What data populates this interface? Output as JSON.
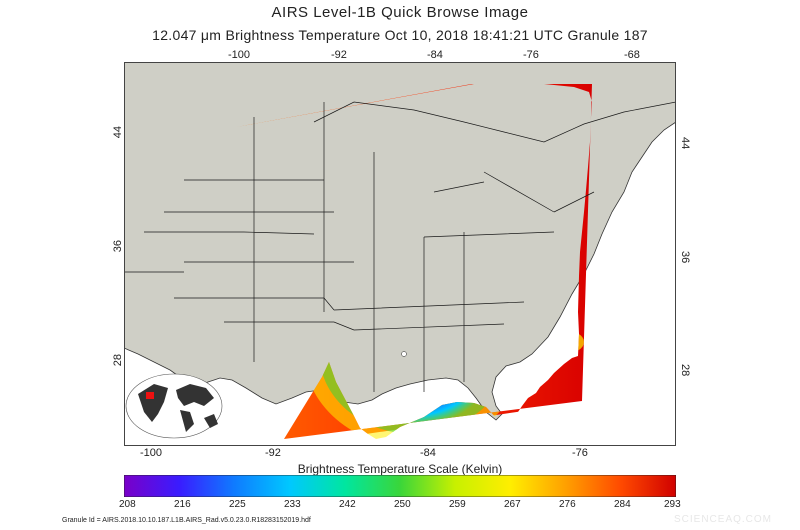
{
  "header": {
    "title": "AIRS Level-1B Quick Browse Image",
    "subtitle": "12.047 μm Brightness Temperature    Oct 10, 2018 18:41:21 UTC   Granule 187"
  },
  "map": {
    "top_longitude_labels": [
      "-100",
      "-92",
      "-84",
      "-76",
      "-68"
    ],
    "bottom_longitude_labels": [
      "-100",
      "-92",
      "-84",
      "-76"
    ],
    "left_latitude_labels": [
      "44",
      "36",
      "28"
    ],
    "right_latitude_labels": [
      "44",
      "36",
      "28"
    ],
    "colors": {
      "land": "#cfcfc6",
      "ocean": "#ffffff",
      "border_lines": "#333333"
    }
  },
  "colorbar": {
    "title": "Brightness Temperature Scale (Kelvin)",
    "ticks": [
      "208",
      "216",
      "225",
      "233",
      "242",
      "250",
      "259",
      "267",
      "276",
      "284",
      "293"
    ],
    "colors": [
      "#7a00c8",
      "#3a1cff",
      "#0f7bff",
      "#00c8ff",
      "#00e6a0",
      "#3ad63a",
      "#c8f000",
      "#ffee00",
      "#ffa000",
      "#ff4a00",
      "#d00000"
    ]
  },
  "footer": {
    "granule_id": "Granule Id = AIRS.2018.10.10.187.L1B.AIRS_Rad.v5.0.23.0.R18283152019.hdf",
    "credit": "SCIENCEAQ.COM"
  }
}
